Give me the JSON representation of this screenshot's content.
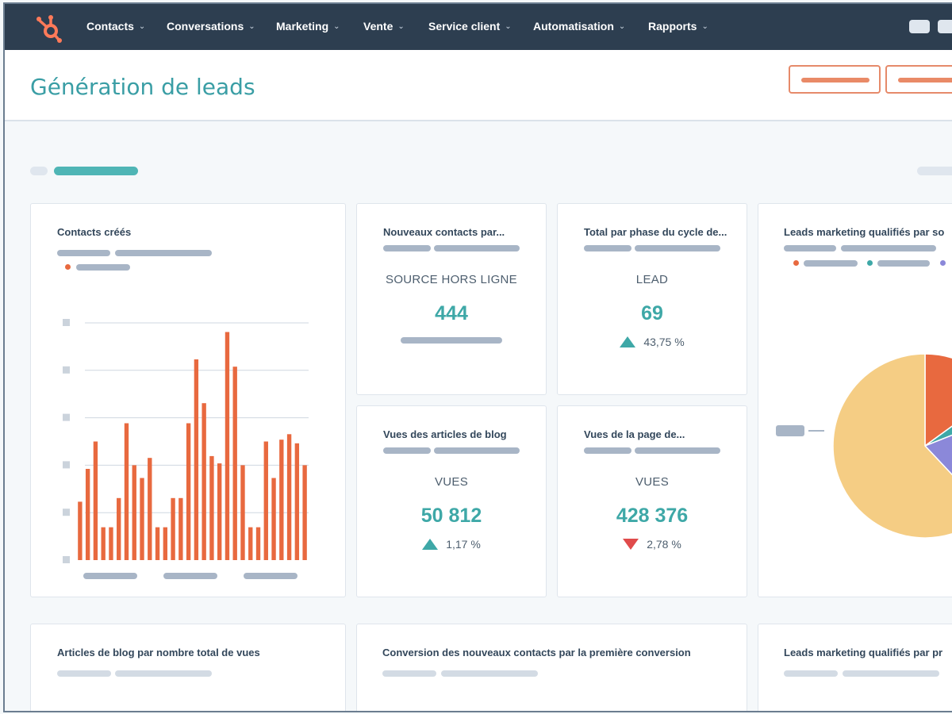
{
  "nav": {
    "items": [
      {
        "label": "Contacts",
        "name": "nav-contacts"
      },
      {
        "label": "Conversations",
        "name": "nav-conversations"
      },
      {
        "label": "Marketing",
        "name": "nav-marketing"
      },
      {
        "label": "Vente",
        "name": "nav-vente"
      },
      {
        "label": "Service client",
        "name": "nav-service-client"
      },
      {
        "label": "Automatisation",
        "name": "nav-automatisation"
      },
      {
        "label": "Rapports",
        "name": "nav-rapports"
      }
    ],
    "chevron": "⌄",
    "logo_icon": "hubspot-sprocket-icon"
  },
  "header": {
    "title": "Génération de leads"
  },
  "colors": {
    "accent": "#3ea8a7",
    "orange": "#e8693f",
    "nav_bg": "#2d3e50",
    "pie_yellow": "#f5cd84",
    "pie_purple": "#8b88d9",
    "up": "#3ea8a7",
    "down": "#e04b4b"
  },
  "cards": {
    "contacts_crees": {
      "title": "Contacts créés"
    },
    "nouveaux_contacts": {
      "title": "Nouveaux contacts par...",
      "label": "SOURCE HORS LIGNE",
      "value": "444"
    },
    "total_phase": {
      "title": "Total par phase du cycle de...",
      "label": "LEAD",
      "value": "69",
      "delta": "43,75 %",
      "direction": "up"
    },
    "leads_mq_source": {
      "title": "Leads marketing qualifiés par so"
    },
    "vues_blog": {
      "title": "Vues des articles de blog",
      "label": "VUES",
      "value": "50 812",
      "delta": "1,17 %",
      "direction": "up"
    },
    "vues_page": {
      "title": "Vues de la page de...",
      "label": "VUES",
      "value": "428 376",
      "delta": "2,78 %",
      "direction": "down"
    },
    "articles_blog": {
      "title": "Articles de blog par nombre total de vues"
    },
    "conversion": {
      "title": "Conversion des nouveaux contacts par la première conversion"
    },
    "leads_mq_pr": {
      "title": "Leads marketing qualifiés par pr"
    }
  },
  "chart_data": [
    {
      "type": "bar",
      "title": "Contacts créés",
      "series": [
        {
          "values": [
            32,
            50,
            65,
            18,
            18,
            34,
            75,
            52,
            45,
            56,
            18,
            18,
            34,
            34,
            75,
            110,
            86,
            57,
            53,
            125,
            106,
            52,
            18,
            18,
            65,
            45,
            66,
            69,
            64,
            52
          ]
        }
      ],
      "ylim": [
        0,
        130
      ],
      "grid": true
    },
    {
      "type": "pie",
      "title": "Leads marketing qualifiés par so",
      "values": [
        62,
        15,
        4,
        19
      ],
      "colors": [
        "#f5cd84",
        "#e8693f",
        "#3ea8a7",
        "#8b88d9"
      ]
    }
  ]
}
